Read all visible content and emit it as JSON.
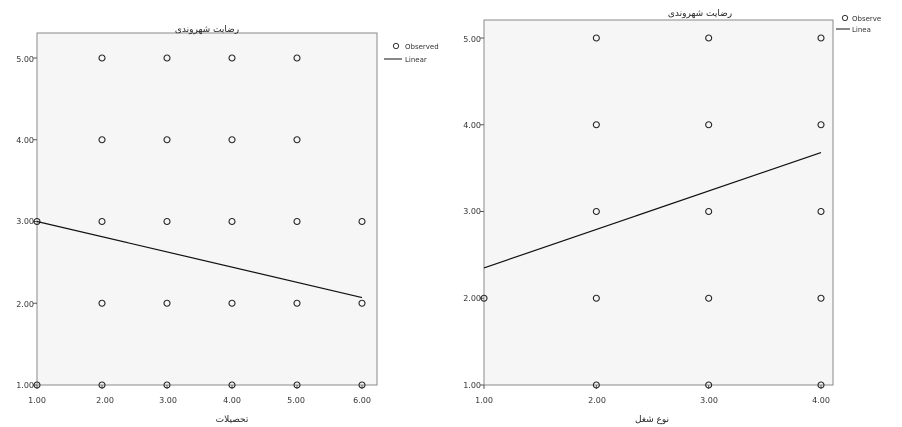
{
  "chart_data": [
    {
      "type": "scatter",
      "title": "رضایت شهروندی",
      "xlabel": "تحصیلات",
      "ylabel": "",
      "xlim": [
        1,
        6
      ],
      "ylim": [
        1,
        5
      ],
      "x_ticks": [
        "1.00",
        "2.00",
        "3.00",
        "4.00",
        "5.00",
        "6.00"
      ],
      "y_ticks": [
        "1.00",
        "2.00",
        "3.00",
        "4.00",
        "5.00"
      ],
      "legend_position": "top-right",
      "series": [
        {
          "name": "Observed",
          "kind": "points",
          "points": [
            [
              1,
              1
            ],
            [
              1,
              3
            ],
            [
              2,
              1
            ],
            [
              2,
              2
            ],
            [
              2,
              3
            ],
            [
              2,
              4
            ],
            [
              2,
              5
            ],
            [
              3,
              1
            ],
            [
              3,
              2
            ],
            [
              3,
              3
            ],
            [
              3,
              4
            ],
            [
              3,
              5
            ],
            [
              4,
              1
            ],
            [
              4,
              2
            ],
            [
              4,
              3
            ],
            [
              4,
              4
            ],
            [
              4,
              5
            ],
            [
              5,
              1
            ],
            [
              5,
              2
            ],
            [
              5,
              3
            ],
            [
              5,
              4
            ],
            [
              5,
              5
            ],
            [
              6,
              1
            ],
            [
              6,
              2
            ],
            [
              6,
              3
            ]
          ]
        },
        {
          "name": "Linear",
          "kind": "line",
          "points": [
            [
              1,
              3.0
            ],
            [
              6,
              2.07
            ]
          ]
        }
      ]
    },
    {
      "type": "scatter",
      "title": "رضایت شهروندی",
      "xlabel": "نوع شغل",
      "ylabel": "",
      "xlim": [
        1,
        4
      ],
      "ylim": [
        1,
        5
      ],
      "x_ticks": [
        "1.00",
        "2.00",
        "3.00",
        "4.00"
      ],
      "y_ticks": [
        "1.00",
        "2.00",
        "3.00",
        "4.00",
        "5.00"
      ],
      "legend_position": "top-right",
      "series": [
        {
          "name": "Observe",
          "kind": "points",
          "points": [
            [
              1,
              2
            ],
            [
              2,
              1
            ],
            [
              2,
              2
            ],
            [
              2,
              3
            ],
            [
              2,
              4
            ],
            [
              2,
              5
            ],
            [
              3,
              1
            ],
            [
              3,
              2
            ],
            [
              3,
              3
            ],
            [
              3,
              4
            ],
            [
              3,
              5
            ],
            [
              4,
              1
            ],
            [
              4,
              2
            ],
            [
              4,
              3
            ],
            [
              4,
              4
            ],
            [
              4,
              5
            ]
          ]
        },
        {
          "name": "Linea",
          "kind": "line",
          "points": [
            [
              1,
              2.35
            ],
            [
              4,
              3.68
            ]
          ]
        }
      ]
    }
  ]
}
